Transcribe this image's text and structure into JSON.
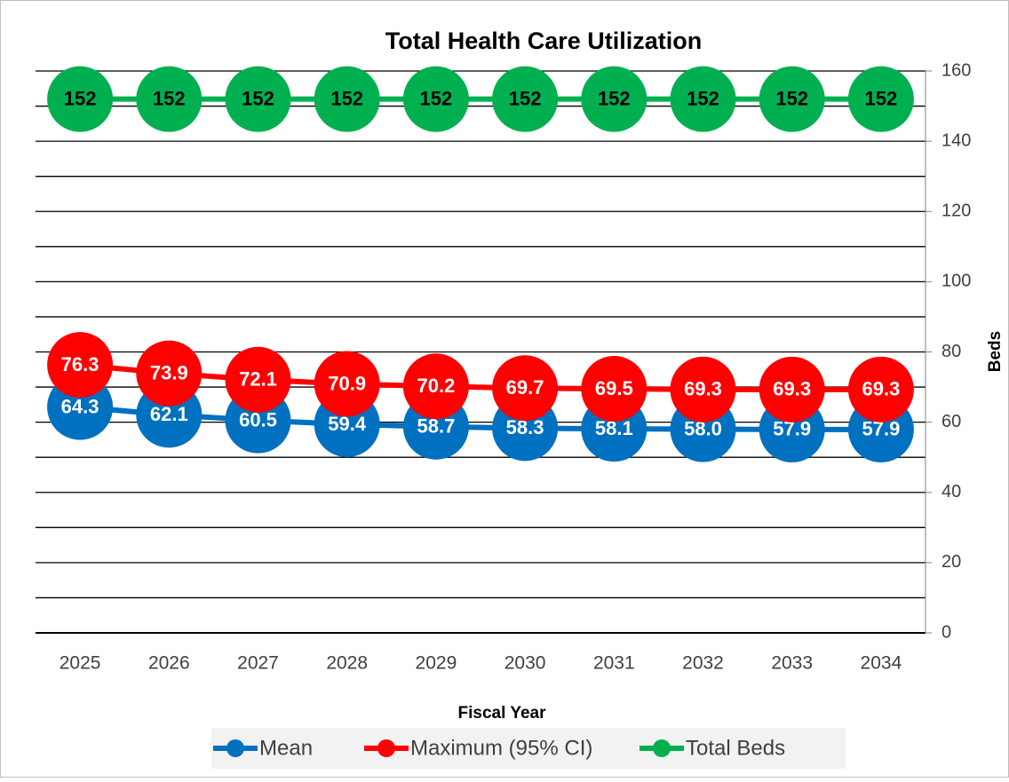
{
  "chart_data": {
    "type": "line",
    "title": "Total Health Care Utilization",
    "x_label": "Fiscal Year",
    "y_label": "Beds",
    "categories": [
      "2025",
      "2026",
      "2027",
      "2028",
      "2029",
      "2030",
      "2031",
      "2032",
      "2033",
      "2034"
    ],
    "series": [
      {
        "name": "Mean",
        "color": "#0070c0",
        "label_color": "#ffffff",
        "values": [
          64.3,
          62.1,
          60.5,
          59.4,
          58.7,
          58.3,
          58.1,
          58.0,
          57.9,
          57.9
        ],
        "value_labels": [
          "64.3",
          "62.1",
          "60.5",
          "59.4",
          "58.7",
          "58.3",
          "58.1",
          "58.0",
          "57.9",
          "57.9"
        ]
      },
      {
        "name": "Maximum (95% CI)",
        "color": "#ff0000",
        "label_color": "#ffffff",
        "values": [
          76.3,
          73.9,
          72.1,
          70.9,
          70.2,
          69.7,
          69.5,
          69.3,
          69.3,
          69.3
        ]
      },
      {
        "name": "Total Beds",
        "color": "#00b050",
        "label_color": "#000000",
        "values": [
          152,
          152,
          152,
          152,
          152,
          152,
          152,
          152,
          152,
          152
        ]
      }
    ],
    "ylim": [
      0,
      160
    ],
    "yticks": [
      0,
      20,
      40,
      60,
      80,
      100,
      120,
      140,
      160
    ],
    "minor_grid": [
      10,
      30,
      50,
      70,
      90,
      110,
      130,
      150
    ],
    "y_axis_side": "right",
    "grid": true,
    "legend": "bottom"
  }
}
